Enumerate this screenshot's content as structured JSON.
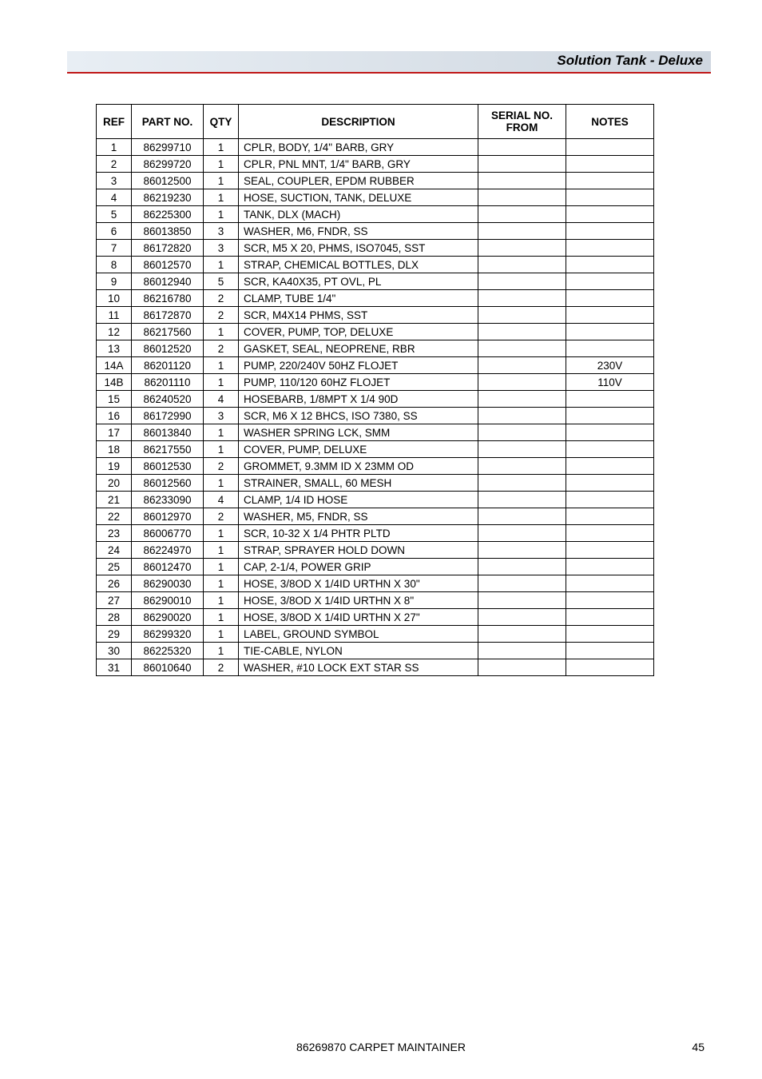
{
  "header": {
    "title": "Solution Tank - Deluxe",
    "band_gradient_from": "#e8eef4",
    "band_gradient_to": "#cfd7e0",
    "underline_color": "#c01818"
  },
  "table": {
    "columns": {
      "ref": "REF",
      "part_no": "PART NO.",
      "qty": "QTY",
      "description": "DESCRIPTION",
      "serial": "SERIAL NO. FROM",
      "notes": "NOTES"
    },
    "rows": [
      {
        "ref": "1",
        "part_no": "86299710",
        "qty": "1",
        "description": "CPLR, BODY, 1/4\" BARB, GRY",
        "serial": "",
        "notes": ""
      },
      {
        "ref": "2",
        "part_no": "86299720",
        "qty": "1",
        "description": "CPLR, PNL MNT, 1/4\" BARB, GRY",
        "serial": "",
        "notes": ""
      },
      {
        "ref": "3",
        "part_no": "86012500",
        "qty": "1",
        "description": "SEAL, COUPLER, EPDM RUBBER",
        "serial": "",
        "notes": ""
      },
      {
        "ref": "4",
        "part_no": "86219230",
        "qty": "1",
        "description": "HOSE, SUCTION, TANK, DELUXE",
        "serial": "",
        "notes": ""
      },
      {
        "ref": "5",
        "part_no": "86225300",
        "qty": "1",
        "description": "TANK, DLX (MACH)",
        "serial": "",
        "notes": ""
      },
      {
        "ref": "6",
        "part_no": "86013850",
        "qty": "3",
        "description": "WASHER, M6, FNDR, SS",
        "serial": "",
        "notes": ""
      },
      {
        "ref": "7",
        "part_no": "86172820",
        "qty": "3",
        "description": "SCR, M5 X 20, PHMS, ISO7045, SST",
        "serial": "",
        "notes": ""
      },
      {
        "ref": "8",
        "part_no": "86012570",
        "qty": "1",
        "description": "STRAP, CHEMICAL BOTTLES, DLX",
        "serial": "",
        "notes": ""
      },
      {
        "ref": "9",
        "part_no": "86012940",
        "qty": "5",
        "description": "SCR, KA40X35, PT OVL, PL",
        "serial": "",
        "notes": ""
      },
      {
        "ref": "10",
        "part_no": "86216780",
        "qty": "2",
        "description": "CLAMP, TUBE 1/4\"",
        "serial": "",
        "notes": ""
      },
      {
        "ref": "11",
        "part_no": "86172870",
        "qty": "2",
        "description": "SCR, M4X14 PHMS, SST",
        "serial": "",
        "notes": ""
      },
      {
        "ref": "12",
        "part_no": "86217560",
        "qty": "1",
        "description": "COVER, PUMP, TOP, DELUXE",
        "serial": "",
        "notes": ""
      },
      {
        "ref": "13",
        "part_no": "86012520",
        "qty": "2",
        "description": "GASKET, SEAL, NEOPRENE, RBR",
        "serial": "",
        "notes": ""
      },
      {
        "ref": "14A",
        "part_no": "86201120",
        "qty": "1",
        "description": "PUMP, 220/240V 50HZ FLOJET",
        "serial": "",
        "notes": "230V"
      },
      {
        "ref": "14B",
        "part_no": "86201110",
        "qty": "1",
        "description": "PUMP, 110/120 60HZ FLOJET",
        "serial": "",
        "notes": "110V"
      },
      {
        "ref": "15",
        "part_no": "86240520",
        "qty": "4",
        "description": "HOSEBARB, 1/8MPT X 1/4 90D",
        "serial": "",
        "notes": ""
      },
      {
        "ref": "16",
        "part_no": "86172990",
        "qty": "3",
        "description": "SCR, M6 X 12 BHCS, ISO 7380, SS",
        "serial": "",
        "notes": ""
      },
      {
        "ref": "17",
        "part_no": "86013840",
        "qty": "1",
        "description": "WASHER SPRING LCK, SMM",
        "serial": "",
        "notes": ""
      },
      {
        "ref": "18",
        "part_no": "86217550",
        "qty": "1",
        "description": "COVER, PUMP, DELUXE",
        "serial": "",
        "notes": ""
      },
      {
        "ref": "19",
        "part_no": "86012530",
        "qty": "2",
        "description": "GROMMET, 9.3MM ID X 23MM OD",
        "serial": "",
        "notes": ""
      },
      {
        "ref": "20",
        "part_no": "86012560",
        "qty": "1",
        "description": "STRAINER, SMALL, 60 MESH",
        "serial": "",
        "notes": ""
      },
      {
        "ref": "21",
        "part_no": "86233090",
        "qty": "4",
        "description": "CLAMP, 1/4 ID HOSE",
        "serial": "",
        "notes": ""
      },
      {
        "ref": "22",
        "part_no": "86012970",
        "qty": "2",
        "description": "WASHER, M5, FNDR, SS",
        "serial": "",
        "notes": ""
      },
      {
        "ref": "23",
        "part_no": "86006770",
        "qty": "1",
        "description": "SCR, 10-32 X 1/4 PHTR PLTD",
        "serial": "",
        "notes": ""
      },
      {
        "ref": "24",
        "part_no": "86224970",
        "qty": "1",
        "description": "STRAP, SPRAYER HOLD DOWN",
        "serial": "",
        "notes": ""
      },
      {
        "ref": "25",
        "part_no": "86012470",
        "qty": "1",
        "description": "CAP, 2-1/4, POWER GRIP",
        "serial": "",
        "notes": ""
      },
      {
        "ref": "26",
        "part_no": "86290030",
        "qty": "1",
        "description": "HOSE, 3/8OD X 1/4ID URTHN X 30\"",
        "serial": "",
        "notes": ""
      },
      {
        "ref": "27",
        "part_no": "86290010",
        "qty": "1",
        "description": "HOSE, 3/8OD X 1/4ID URTHN X 8\"",
        "serial": "",
        "notes": ""
      },
      {
        "ref": "28",
        "part_no": "86290020",
        "qty": "1",
        "description": "HOSE, 3/8OD X 1/4ID URTHN X 27\"",
        "serial": "",
        "notes": ""
      },
      {
        "ref": "29",
        "part_no": "86299320",
        "qty": "1",
        "description": "LABEL, GROUND SYMBOL",
        "serial": "",
        "notes": ""
      },
      {
        "ref": "30",
        "part_no": "86225320",
        "qty": "1",
        "description": "TIE-CABLE, NYLON",
        "serial": "",
        "notes": ""
      },
      {
        "ref": "31",
        "part_no": "86010640",
        "qty": "2",
        "description": "WASHER, #10 LOCK EXT STAR SS",
        "serial": "",
        "notes": ""
      }
    ]
  },
  "footer": {
    "center_text": "86269870 CARPET MAINTAINER",
    "page_number": "45"
  }
}
